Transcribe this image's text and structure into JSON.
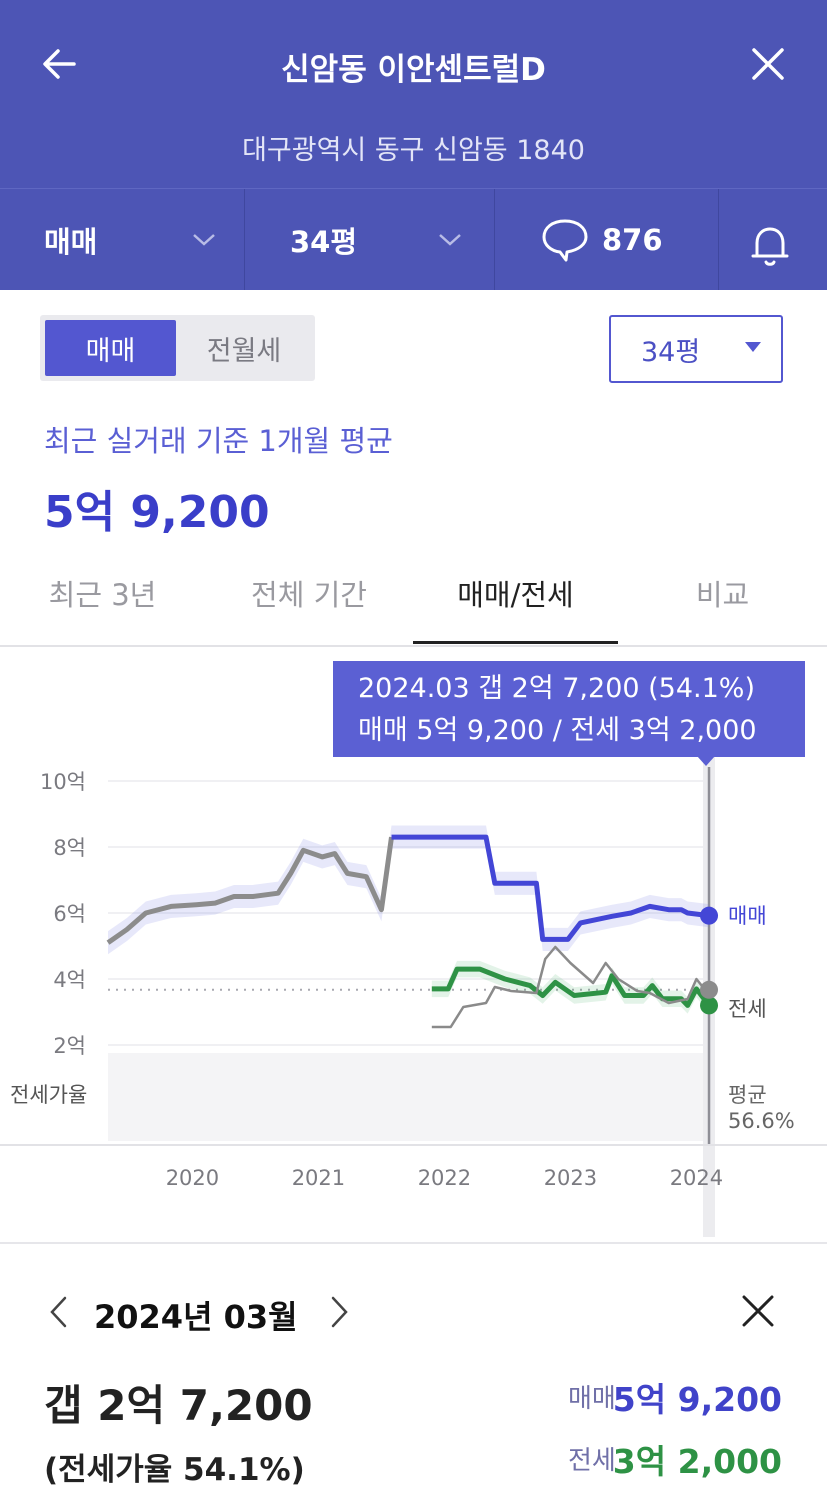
{
  "header": {
    "title": "신암동 이안센트럴D",
    "address": "대구광역시 동구 신암동 1840",
    "trade_dropdown": "매매",
    "size_dropdown": "34평",
    "comment_count": "876"
  },
  "filters": {
    "segment": [
      "매매",
      "전월세"
    ],
    "size_select": "34평"
  },
  "summary": {
    "label": "최근 실거래 기준 1개월 평균",
    "value": "5억 9,200"
  },
  "period_tabs": [
    "최근 3년",
    "전체 기간",
    "매매/전세",
    "비교"
  ],
  "tooltip": {
    "line1": "2024.03  갭 2억 7,200 (54.1%)",
    "line2": "매매 5억 9,200 / 전세 3억 2,000"
  },
  "chart_data": {
    "type": "line",
    "y_unit": "억",
    "yticks": [
      "10억",
      "8억",
      "6억",
      "4억",
      "2억"
    ],
    "ylim": [
      2,
      10
    ],
    "xticks": [
      "2020",
      "2021",
      "2022",
      "2023",
      "2024"
    ],
    "series": [
      {
        "name": "매매",
        "color": "#4346d6",
        "points": [
          [
            2019.4,
            5.1
          ],
          [
            2019.55,
            5.5
          ],
          [
            2019.7,
            6.0
          ],
          [
            2019.9,
            6.2
          ],
          [
            2020.1,
            6.25
          ],
          [
            2020.25,
            6.3
          ],
          [
            2020.4,
            6.5
          ],
          [
            2020.55,
            6.5
          ],
          [
            2020.75,
            6.6
          ],
          [
            2020.85,
            7.2
          ],
          [
            2020.95,
            7.9
          ],
          [
            2021.1,
            7.7
          ],
          [
            2021.2,
            7.8
          ],
          [
            2021.3,
            7.2
          ],
          [
            2021.45,
            7.1
          ],
          [
            2021.57,
            6.1
          ],
          [
            2021.65,
            8.3
          ],
          [
            2022.4,
            8.3
          ],
          [
            2022.47,
            6.9
          ],
          [
            2022.8,
            6.9
          ],
          [
            2022.85,
            5.2
          ],
          [
            2023.05,
            5.2
          ],
          [
            2023.15,
            5.7
          ],
          [
            2023.4,
            5.9
          ],
          [
            2023.55,
            6.0
          ],
          [
            2023.7,
            6.2
          ],
          [
            2023.85,
            6.1
          ],
          [
            2023.95,
            6.1
          ],
          [
            2024.0,
            6.0
          ],
          [
            2024.17,
            5.92
          ]
        ]
      },
      {
        "name": "전세",
        "color": "#2e9245",
        "points": [
          [
            2021.97,
            3.7
          ],
          [
            2022.1,
            3.7
          ],
          [
            2022.17,
            4.3
          ],
          [
            2022.35,
            4.3
          ],
          [
            2022.55,
            4.0
          ],
          [
            2022.75,
            3.8
          ],
          [
            2022.85,
            3.5
          ],
          [
            2022.95,
            3.9
          ],
          [
            2023.1,
            3.5
          ],
          [
            2023.35,
            3.6
          ],
          [
            2023.4,
            4.1
          ],
          [
            2023.5,
            3.5
          ],
          [
            2023.65,
            3.5
          ],
          [
            2023.72,
            3.8
          ],
          [
            2023.8,
            3.4
          ],
          [
            2023.95,
            3.4
          ],
          [
            2024.0,
            3.2
          ],
          [
            2024.07,
            3.7
          ],
          [
            2024.17,
            3.2
          ]
        ]
      },
      {
        "name": "전세가율",
        "color": "#8a8a8a",
        "points": [
          [
            2021.97,
            0.38
          ],
          [
            2022.12,
            0.38
          ],
          [
            2022.22,
            0.48
          ],
          [
            2022.4,
            0.5
          ],
          [
            2022.47,
            0.58
          ],
          [
            2022.6,
            0.56
          ],
          [
            2022.8,
            0.55
          ],
          [
            2022.87,
            0.72
          ],
          [
            2022.95,
            0.78
          ],
          [
            2023.07,
            0.7
          ],
          [
            2023.25,
            0.6
          ],
          [
            2023.35,
            0.7
          ],
          [
            2023.45,
            0.62
          ],
          [
            2023.6,
            0.56
          ],
          [
            2023.7,
            0.55
          ],
          [
            2023.85,
            0.5
          ],
          [
            2024.0,
            0.52
          ],
          [
            2024.07,
            0.62
          ],
          [
            2024.17,
            0.541
          ]
        ]
      }
    ],
    "end_labels": {
      "sale": "매매",
      "jeonse": "전세",
      "avg_label": "평균",
      "avg_value": "56.6%"
    },
    "ratio_axis_label": "전세가율",
    "selected_x": 2024.17
  },
  "detail": {
    "month": "2024년 03월",
    "gap": "갭 2억 7,200",
    "ratio": "(전세가율 54.1%)",
    "sale_label": "매매",
    "sale_value": "5억 9,200",
    "jeonse_label": "전세",
    "jeonse_value": "3억 2,000"
  },
  "colors": {
    "header_bg": "#4d55b5",
    "accent": "#5357d0",
    "sale": "#4346d6",
    "jeonse": "#2e9245"
  }
}
